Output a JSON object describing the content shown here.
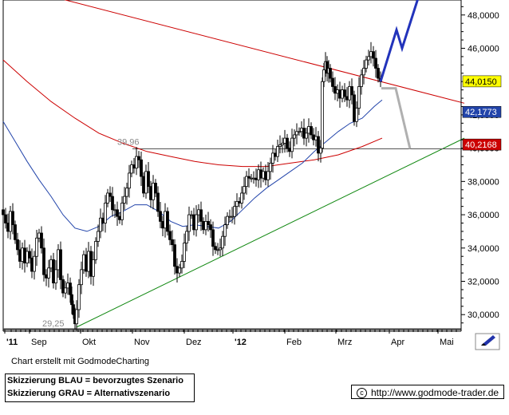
{
  "chart_data": {
    "type": "candlestick",
    "x_tick_labels": [
      "'11",
      "Sep",
      "Okt",
      "Nov",
      "Dez",
      "'12",
      "Feb",
      "Mrz",
      "Apr",
      "Mai"
    ],
    "y_tick_labels": [
      "30,0000",
      "32,0000",
      "34,0000",
      "36,0000",
      "38,0000",
      "40,0000",
      "42,0000",
      "44,0000",
      "46,0000",
      "48,0000"
    ],
    "ylim": [
      29.1,
      48.9
    ],
    "grid": false,
    "price_badges": [
      {
        "label": "44,0150",
        "value": 44.015,
        "color": "#ffff00",
        "text_color": "#000000"
      },
      {
        "label": "42,1773",
        "value": 42.1773,
        "color": "#2244aa",
        "text_color": "#ffffff"
      },
      {
        "label": "40,2168",
        "value": 40.2168,
        "color": "#cc0000",
        "text_color": "#ffffff"
      }
    ],
    "annotations": [
      {
        "label": "39,96",
        "value": 39.96
      },
      {
        "label": "29,25",
        "value": 29.25
      }
    ],
    "close_path": [
      [
        0,
        36.0
      ],
      [
        3,
        35.5
      ],
      [
        6,
        35.0
      ],
      [
        9,
        36.2
      ],
      [
        12,
        35.4
      ],
      [
        15,
        34.5
      ],
      [
        18,
        33.9
      ],
      [
        21,
        33.2
      ],
      [
        24,
        34.0
      ],
      [
        27,
        33.1
      ],
      [
        30,
        33.8
      ],
      [
        33,
        33.4
      ],
      [
        36,
        32.6
      ],
      [
        39,
        33.5
      ],
      [
        42,
        34.6
      ],
      [
        45,
        34.9
      ],
      [
        48,
        34.0
      ],
      [
        51,
        32.4
      ],
      [
        54,
        32.2
      ],
      [
        57,
        32.8
      ],
      [
        60,
        33.3
      ],
      [
        63,
        31.9
      ],
      [
        66,
        32.7
      ],
      [
        69,
        33.9
      ],
      [
        72,
        32.1
      ],
      [
        75,
        31.3
      ],
      [
        78,
        31.6
      ],
      [
        81,
        31.9
      ],
      [
        84,
        31.2
      ],
      [
        86,
        30.6
      ],
      [
        88,
        30.0
      ],
      [
        90,
        29.45
      ],
      [
        92,
        30.3
      ],
      [
        95,
        31.8
      ],
      [
        98,
        32.7
      ],
      [
        101,
        33.6
      ],
      [
        104,
        32.6
      ],
      [
        107,
        33.8
      ],
      [
        110,
        32.3
      ],
      [
        113,
        33.3
      ],
      [
        116,
        34.4
      ],
      [
        119,
        35.0
      ],
      [
        122,
        35.8
      ],
      [
        125,
        35.5
      ],
      [
        128,
        36.7
      ],
      [
        131,
        37.3
      ],
      [
        134,
        37.1
      ],
      [
        137,
        36.3
      ],
      [
        140,
        36.3
      ],
      [
        143,
        35.9
      ],
      [
        146,
        35.7
      ],
      [
        149,
        36.7
      ],
      [
        152,
        37.1
      ],
      [
        155,
        37.6
      ],
      [
        158,
        38.5
      ],
      [
        161,
        39.0
      ],
      [
        164,
        38.8
      ],
      [
        167,
        39.5
      ],
      [
        170,
        39.3
      ],
      [
        173,
        38.3
      ],
      [
        176,
        37.3
      ],
      [
        179,
        38.6
      ],
      [
        182,
        37.7
      ],
      [
        185,
        36.9
      ],
      [
        188,
        37.9
      ],
      [
        191,
        37.3
      ],
      [
        194,
        36.2
      ],
      [
        197,
        35.6
      ],
      [
        200,
        35.2
      ],
      [
        203,
        36.2
      ],
      [
        206,
        35.0
      ],
      [
        209,
        34.5
      ],
      [
        212,
        34.2
      ],
      [
        215,
        32.9
      ],
      [
        218,
        32.5
      ],
      [
        221,
        32.8
      ],
      [
        224,
        33.2
      ],
      [
        227,
        34.3
      ],
      [
        230,
        35.0
      ],
      [
        233,
        36.0
      ],
      [
        236,
        36.0
      ],
      [
        239,
        35.1
      ],
      [
        242,
        36.0
      ],
      [
        245,
        36.3
      ],
      [
        248,
        35.6
      ],
      [
        251,
        35.1
      ],
      [
        254,
        35.6
      ],
      [
        257,
        35.4
      ],
      [
        260,
        35.1
      ],
      [
        263,
        34.1
      ],
      [
        266,
        33.9
      ],
      [
        269,
        33.9
      ],
      [
        272,
        34.0
      ],
      [
        275,
        34.7
      ],
      [
        278,
        35.4
      ],
      [
        281,
        35.9
      ],
      [
        284,
        35.9
      ],
      [
        287,
        35.9
      ],
      [
        290,
        36.5
      ],
      [
        293,
        36.8
      ],
      [
        296,
        36.7
      ],
      [
        299,
        37.3
      ],
      [
        302,
        37.7
      ],
      [
        305,
        38.3
      ],
      [
        308,
        38.2
      ],
      [
        311,
        38.2
      ],
      [
        314,
        38.2
      ],
      [
        317,
        38.1
      ],
      [
        320,
        38.7
      ],
      [
        323,
        38.2
      ],
      [
        326,
        38.6
      ],
      [
        329,
        38.1
      ],
      [
        332,
        38.6
      ],
      [
        335,
        39.1
      ],
      [
        338,
        39.7
      ],
      [
        341,
        39.5
      ],
      [
        344,
        40.1
      ],
      [
        347,
        40.2
      ],
      [
        350,
        40.3
      ],
      [
        353,
        40.6
      ],
      [
        356,
        40.0
      ],
      [
        359,
        39.8
      ],
      [
        362,
        40.6
      ],
      [
        365,
        40.8
      ],
      [
        368,
        41.0
      ],
      [
        371,
        41.0
      ],
      [
        374,
        41.2
      ],
      [
        377,
        40.6
      ],
      [
        380,
        40.9
      ],
      [
        383,
        41.3
      ],
      [
        386,
        40.8
      ],
      [
        389,
        40.5
      ],
      [
        392,
        40.7
      ],
      [
        395,
        39.7
      ],
      [
        398,
        40.0
      ],
      [
        400,
        44.0
      ],
      [
        402,
        44.7
      ],
      [
        404,
        45.2
      ],
      [
        406,
        44.5
      ],
      [
        408,
        44.8
      ],
      [
        410,
        44.2
      ],
      [
        413,
        43.7
      ],
      [
        416,
        43.3
      ],
      [
        419,
        43.5
      ],
      [
        422,
        43.0
      ],
      [
        425,
        43.5
      ],
      [
        428,
        43.1
      ],
      [
        431,
        42.9
      ],
      [
        434,
        43.7
      ],
      [
        437,
        43.2
      ],
      [
        440,
        41.6
      ],
      [
        443,
        42.4
      ],
      [
        446,
        43.7
      ],
      [
        449,
        44.4
      ],
      [
        452,
        44.8
      ],
      [
        455,
        45.3
      ],
      [
        458,
        45.5
      ],
      [
        461,
        45.8
      ],
      [
        464,
        45.4
      ],
      [
        467,
        44.8
      ],
      [
        470,
        44.2
      ],
      [
        473,
        44.0
      ]
    ],
    "overlays": {
      "sma_200": [
        [
          0,
          45.3
        ],
        [
          30,
          44.0
        ],
        [
          60,
          42.8
        ],
        [
          90,
          41.8
        ],
        [
          120,
          40.9
        ],
        [
          150,
          40.3
        ],
        [
          180,
          39.8
        ],
        [
          210,
          39.5
        ],
        [
          240,
          39.2
        ],
        [
          270,
          39.0
        ],
        [
          300,
          38.9
        ],
        [
          330,
          38.9
        ],
        [
          360,
          39.1
        ],
        [
          390,
          39.3
        ],
        [
          420,
          39.6
        ],
        [
          450,
          40.1
        ],
        [
          475,
          40.6
        ]
      ],
      "sma_50": [
        [
          0,
          41.6
        ],
        [
          15,
          40.4
        ],
        [
          30,
          39.2
        ],
        [
          45,
          38.1
        ],
        [
          60,
          37.1
        ],
        [
          75,
          36.0
        ],
        [
          90,
          35.2
        ],
        [
          105,
          35.0
        ],
        [
          120,
          35.3
        ],
        [
          135,
          35.9
        ],
        [
          150,
          36.2
        ],
        [
          165,
          36.6
        ],
        [
          180,
          36.6
        ],
        [
          195,
          36.2
        ],
        [
          210,
          35.6
        ],
        [
          225,
          35.3
        ],
        [
          240,
          35.4
        ],
        [
          255,
          35.3
        ],
        [
          270,
          35.2
        ],
        [
          285,
          35.6
        ],
        [
          300,
          36.3
        ],
        [
          315,
          37.0
        ],
        [
          330,
          37.6
        ],
        [
          345,
          38.1
        ],
        [
          360,
          38.6
        ],
        [
          375,
          39.1
        ],
        [
          390,
          39.8
        ],
        [
          405,
          40.4
        ],
        [
          420,
          41.0
        ],
        [
          435,
          41.5
        ],
        [
          450,
          41.8
        ],
        [
          465,
          42.5
        ],
        [
          475,
          42.9
        ]
      ],
      "resistance_line": {
        "p1": [
          70,
          49.0
        ],
        "p2": [
          578,
          42.7
        ]
      },
      "support_line": {
        "p1": [
          92,
          29.25
        ],
        "p2": [
          578,
          40.6
        ]
      },
      "horizontal_39_96": {
        "x1": 162,
        "x2": 578,
        "value": 39.96
      }
    },
    "scenarios": [
      {
        "name": "BLAU",
        "color": "#2233bb",
        "points": [
          [
            473,
            44.0
          ],
          [
            493,
            47.1
          ],
          [
            500,
            46.0
          ],
          [
            520,
            49.0
          ]
        ]
      },
      {
        "name": "GRAU",
        "color": "#b0b0b0",
        "points": [
          [
            474,
            43.6
          ],
          [
            492,
            43.6
          ],
          [
            510,
            39.96
          ]
        ]
      }
    ]
  },
  "footer": {
    "credit": "Chart erstellt mit GodmodeCharting",
    "legend_line1": "Skizzierung BLAU = bevorzugtes Szenario",
    "legend_line2": "Skizzierung GRAU = Alternativszenario",
    "url": "http://www.godmode-trader.de"
  },
  "icons": {
    "copyright": "copyright-icon",
    "pencil": "pencil-icon"
  },
  "colors": {
    "candle_up": "#ffffff",
    "candle_down": "#000000",
    "sma_200": "#cc0000",
    "sma_50": "#2244aa",
    "support": "#118811",
    "resistance": "#cc0000"
  }
}
